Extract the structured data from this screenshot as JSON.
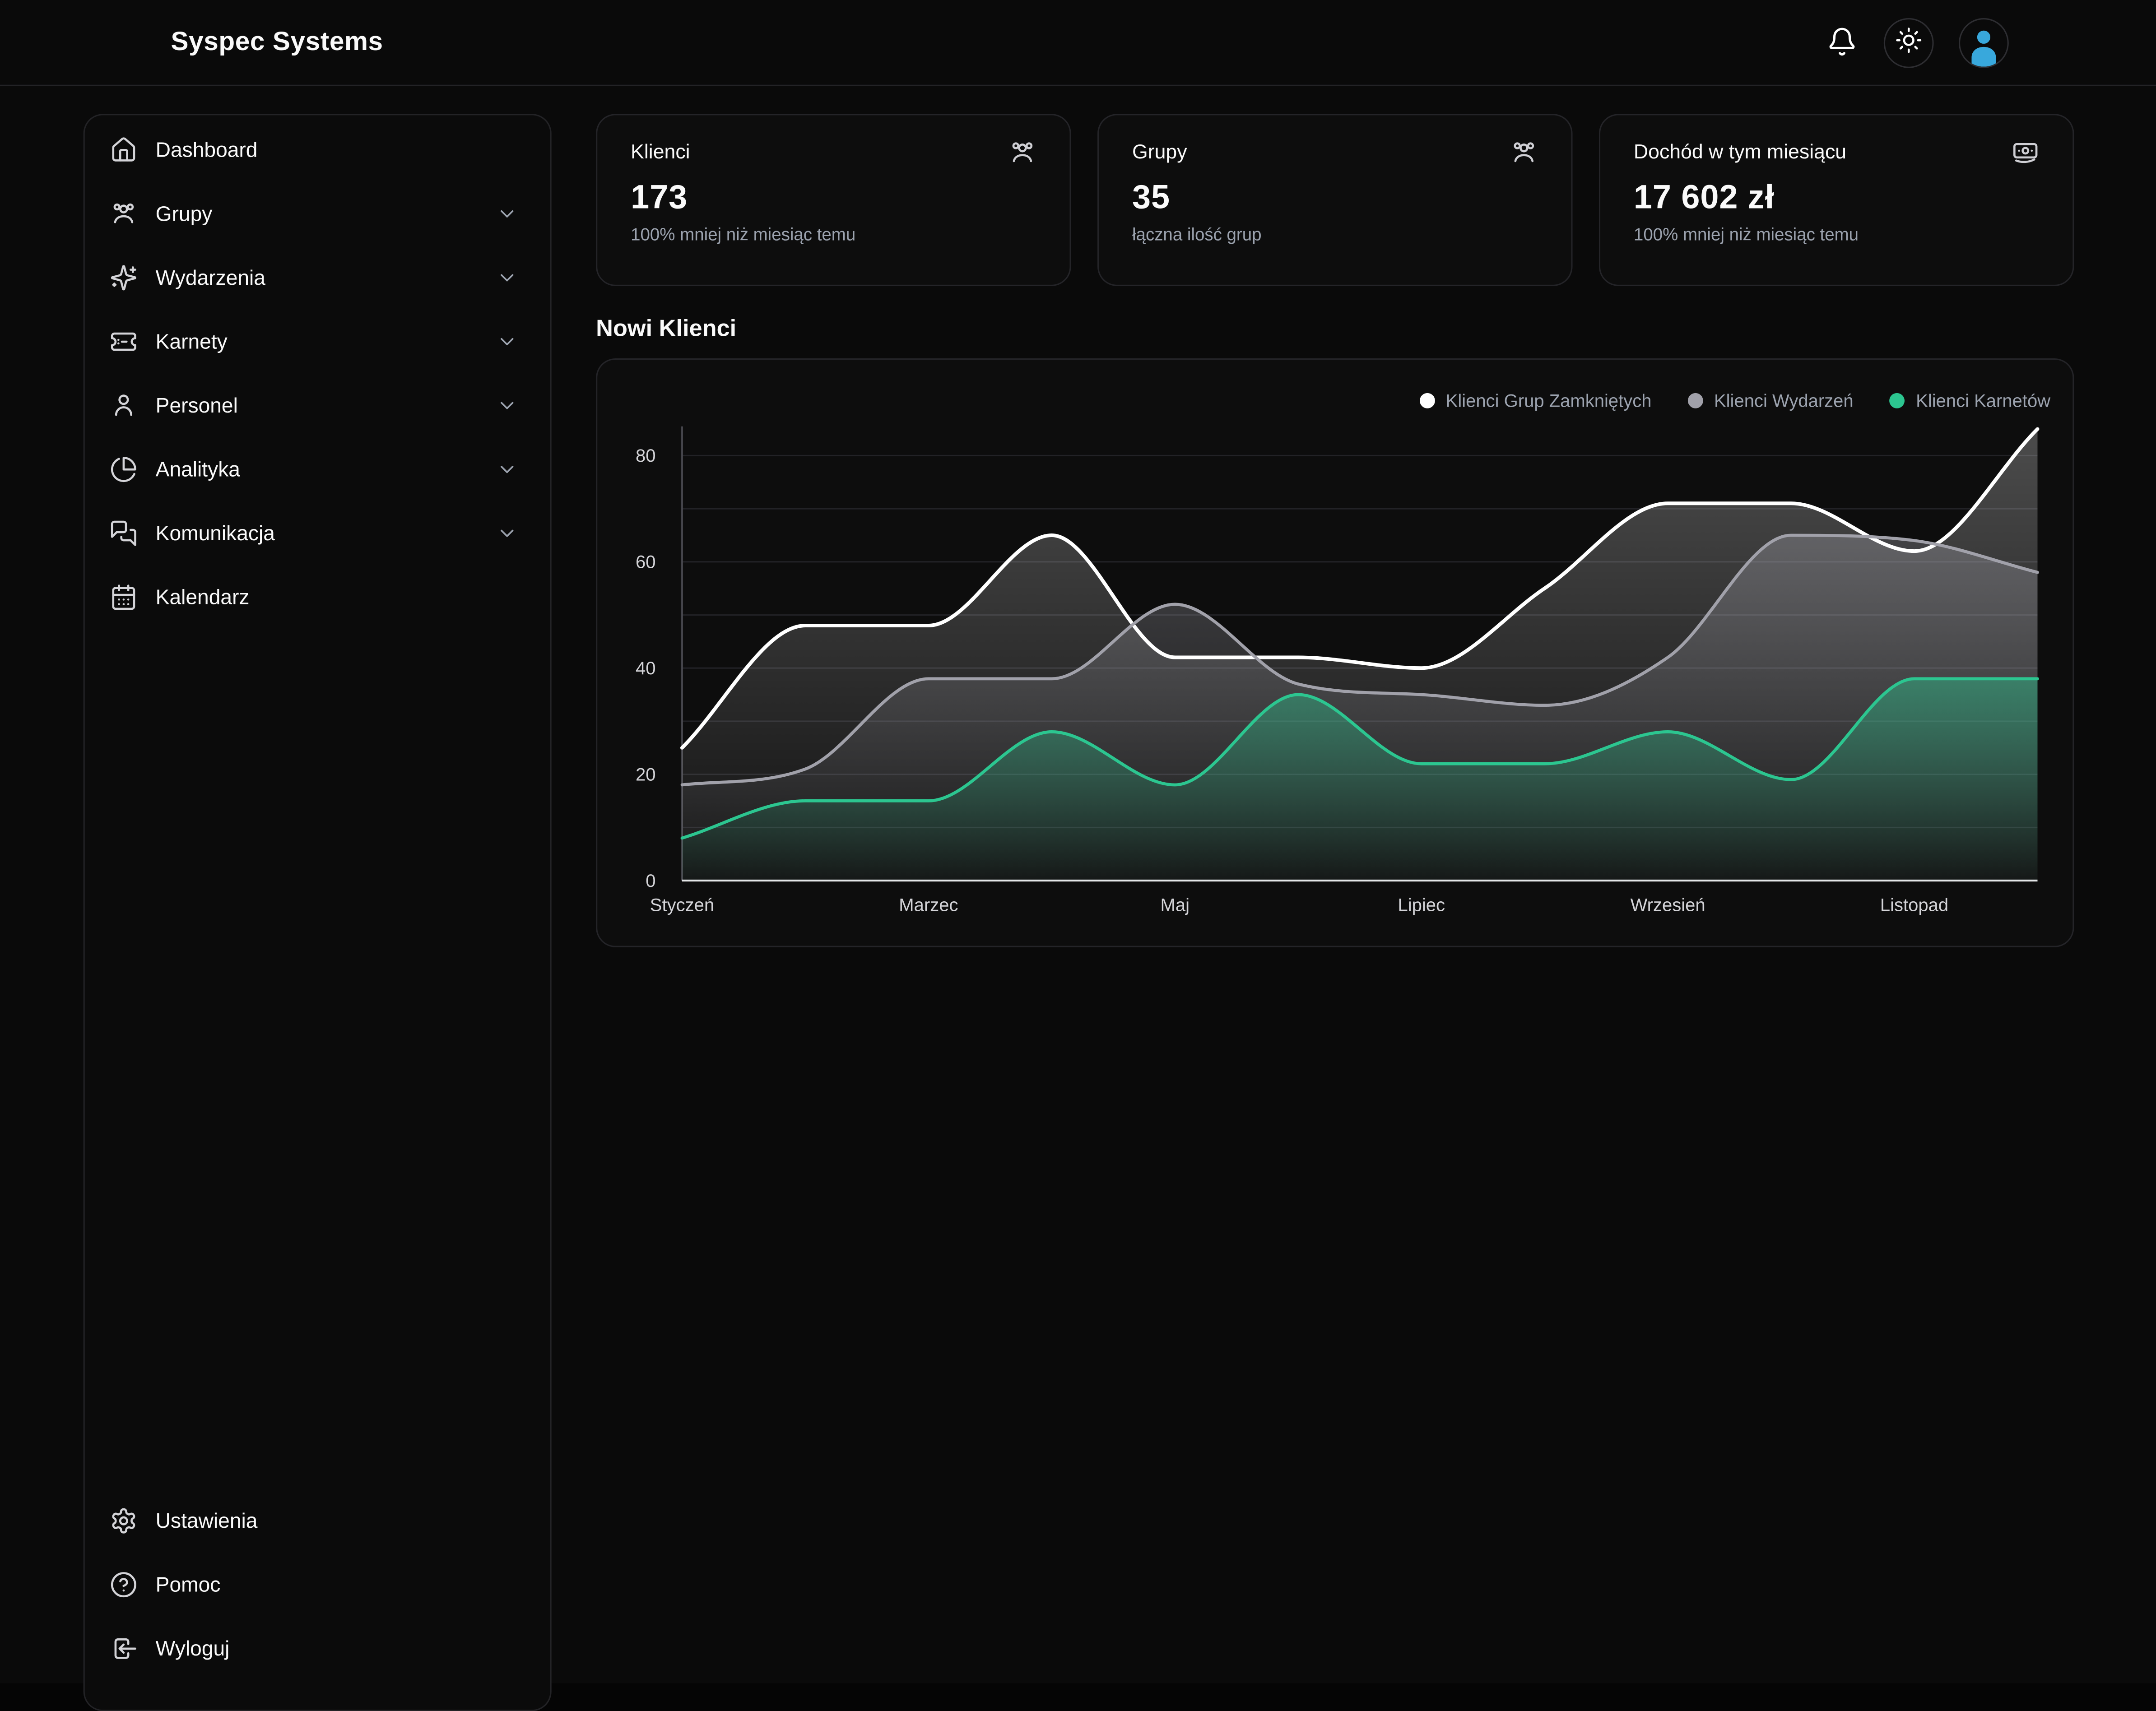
{
  "header": {
    "logo": "Syspec Systems",
    "actions": [
      {
        "id": "notifications",
        "icon": "bell"
      },
      {
        "id": "theme-toggle",
        "icon": "sun"
      },
      {
        "id": "user-avatar",
        "icon": "avatar"
      }
    ]
  },
  "sidebar": {
    "items": [
      {
        "id": "dashboard",
        "label": "Dashboard",
        "icon": "home",
        "expandable": false
      },
      {
        "id": "grupy",
        "label": "Grupy",
        "icon": "users",
        "expandable": true
      },
      {
        "id": "wydarzenia",
        "label": "Wydarzenia",
        "icon": "sparkles",
        "expandable": true
      },
      {
        "id": "karnety",
        "label": "Karnety",
        "icon": "ticket",
        "expandable": true
      },
      {
        "id": "personel",
        "label": "Personel",
        "icon": "user",
        "expandable": true
      },
      {
        "id": "analityka",
        "label": "Analityka",
        "icon": "pie-chart",
        "expandable": true
      },
      {
        "id": "komunikacja",
        "label": "Komunikacja",
        "icon": "messages",
        "expandable": true
      },
      {
        "id": "kalendarz",
        "label": "Kalendarz",
        "icon": "calendar",
        "expandable": false
      }
    ],
    "footer_items": [
      {
        "id": "ustawienia",
        "label": "Ustawienia",
        "icon": "settings"
      },
      {
        "id": "pomoc",
        "label": "Pomoc",
        "icon": "help-circle"
      },
      {
        "id": "wyloguj",
        "label": "Wyloguj",
        "icon": "log-out"
      }
    ]
  },
  "stats": [
    {
      "id": "klienci",
      "title": "Klienci",
      "icon": "users",
      "value": "173",
      "subtitle": "100% mniej niż miesiąc temu"
    },
    {
      "id": "grupy",
      "title": "Grupy",
      "icon": "users",
      "value": "35",
      "subtitle": "łączna ilość grup"
    },
    {
      "id": "dochod",
      "title": "Dochód w tym miesiącu",
      "icon": "banknote",
      "value": "17 602 zł",
      "subtitle": "100% mniej niż miesiąc temu"
    }
  ],
  "main": {
    "section_title": "Nowi Klienci"
  },
  "chart_data": {
    "type": "area",
    "title": "Nowi Klienci",
    "points_count": 12,
    "x_tick_labels": [
      "Styczeń",
      "Marzec",
      "Maj",
      "Lipiec",
      "Wrzesień",
      "Listopad"
    ],
    "x_tick_indices": [
      0,
      2,
      4,
      6,
      8,
      10
    ],
    "y_ticks": [
      0,
      20,
      40,
      60,
      80
    ],
    "ylim": [
      0,
      88
    ],
    "grid": "horizontal every 10, y-axis left line, white x-axis baseline",
    "legend_position": "top-right",
    "series": [
      {
        "name": "Klienci Grup Zamkniętych",
        "color": "#ffffff",
        "values": [
          25,
          48,
          48,
          65,
          42,
          42,
          40,
          55,
          71,
          71,
          62,
          85
        ]
      },
      {
        "name": "Klienci Wydarzeń",
        "color": "#a1a1aa",
        "values": [
          18,
          21,
          38,
          38,
          52,
          37,
          35,
          33,
          42,
          65,
          64,
          58
        ]
      },
      {
        "name": "Klienci Karnetów",
        "color": "#2cc690",
        "values": [
          8,
          15,
          15,
          28,
          18,
          35,
          22,
          22,
          28,
          19,
          38,
          38
        ]
      }
    ]
  },
  "colors": {
    "background": "#0a0a0a",
    "card": "#0d0d0d",
    "border": "#242428",
    "text": "#fafafa",
    "muted": "#9ca3af",
    "tick": "#d4d4d8",
    "accent_green": "#2cc690",
    "avatar_blue": "#38a8dc"
  }
}
